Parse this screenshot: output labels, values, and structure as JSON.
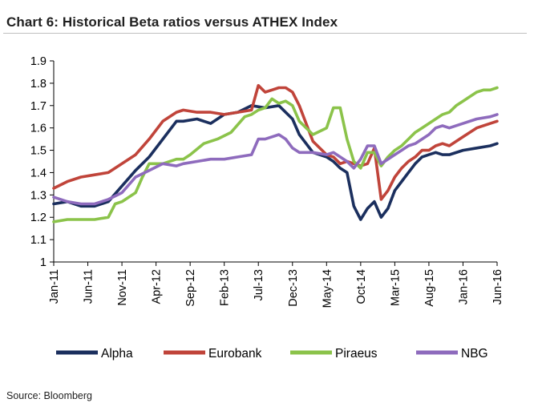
{
  "title": "Chart 6: Historical Beta ratios versus ATHEX Index",
  "source": "Source: Bloomberg",
  "chart_data": {
    "type": "line",
    "title": "Chart 6: Historical Beta ratios versus ATHEX Index",
    "xlabel": "",
    "ylabel": "",
    "ylim": [
      1,
      1.9
    ],
    "yticks": [
      "1",
      "1.1",
      "1.2",
      "1.3",
      "1.4",
      "1.5",
      "1.6",
      "1.7",
      "1.8",
      "1.9"
    ],
    "x_tick_labels": [
      "Jan-11",
      "Jun-11",
      "Nov-11",
      "Apr-12",
      "Sep-12",
      "Feb-13",
      "Jul-13",
      "Dec-13",
      "May-14",
      "Oct-14",
      "Mar-15",
      "Aug-15",
      "Jan-16",
      "Jun-16"
    ],
    "x_range_months": [
      0,
      65
    ],
    "grid": false,
    "legend": "bottom",
    "series": [
      {
        "name": "Alpha",
        "color": "#1b2f5e",
        "x": [
          0,
          2,
          4,
          6,
          8,
          10,
          12,
          14,
          16,
          18,
          19,
          21,
          23,
          25,
          27,
          29,
          31,
          33,
          35,
          36,
          38,
          40,
          41,
          42,
          43,
          44,
          45,
          46,
          47,
          48,
          49,
          50,
          51,
          52,
          53,
          54,
          55,
          56,
          57,
          58,
          60,
          62,
          64,
          65
        ],
        "y": [
          1.26,
          1.27,
          1.25,
          1.25,
          1.27,
          1.34,
          1.41,
          1.47,
          1.55,
          1.63,
          1.63,
          1.64,
          1.62,
          1.66,
          1.67,
          1.7,
          1.69,
          1.7,
          1.64,
          1.57,
          1.49,
          1.47,
          1.45,
          1.42,
          1.4,
          1.25,
          1.19,
          1.24,
          1.27,
          1.2,
          1.24,
          1.32,
          1.36,
          1.4,
          1.44,
          1.47,
          1.48,
          1.49,
          1.48,
          1.48,
          1.5,
          1.51,
          1.52,
          1.53
        ]
      },
      {
        "name": "Eurobank",
        "color": "#c0443a",
        "x": [
          0,
          2,
          4,
          6,
          8,
          10,
          12,
          14,
          16,
          18,
          19,
          21,
          23,
          25,
          27,
          29,
          30,
          31,
          32,
          33,
          34,
          35,
          36,
          38,
          40,
          41,
          42,
          43,
          44,
          45,
          46,
          47,
          48,
          49,
          50,
          51,
          52,
          53,
          54,
          55,
          56,
          57,
          58,
          60,
          62,
          64,
          65
        ],
        "y": [
          1.33,
          1.36,
          1.38,
          1.39,
          1.4,
          1.44,
          1.48,
          1.55,
          1.63,
          1.67,
          1.68,
          1.67,
          1.67,
          1.66,
          1.67,
          1.68,
          1.79,
          1.76,
          1.77,
          1.78,
          1.78,
          1.76,
          1.7,
          1.54,
          1.48,
          1.47,
          1.44,
          1.45,
          1.44,
          1.43,
          1.44,
          1.51,
          1.28,
          1.32,
          1.38,
          1.42,
          1.45,
          1.47,
          1.5,
          1.5,
          1.52,
          1.53,
          1.52,
          1.56,
          1.6,
          1.62,
          1.63
        ]
      },
      {
        "name": "Piraeus",
        "color": "#8bc34a",
        "x": [
          0,
          2,
          4,
          6,
          8,
          9,
          10,
          12,
          13,
          14,
          16,
          18,
          19,
          20,
          22,
          24,
          26,
          28,
          29,
          30,
          31,
          32,
          33,
          34,
          35,
          36,
          38,
          40,
          41,
          42,
          43,
          44,
          45,
          46,
          47,
          48,
          49,
          50,
          51,
          52,
          53,
          54,
          55,
          56,
          57,
          58,
          59,
          60,
          61,
          62,
          63,
          64,
          65
        ],
        "y": [
          1.18,
          1.19,
          1.19,
          1.19,
          1.2,
          1.26,
          1.27,
          1.31,
          1.38,
          1.44,
          1.44,
          1.46,
          1.46,
          1.48,
          1.53,
          1.55,
          1.58,
          1.65,
          1.66,
          1.68,
          1.69,
          1.73,
          1.71,
          1.72,
          1.7,
          1.63,
          1.57,
          1.6,
          1.69,
          1.69,
          1.55,
          1.45,
          1.42,
          1.49,
          1.49,
          1.43,
          1.47,
          1.5,
          1.52,
          1.55,
          1.58,
          1.6,
          1.62,
          1.64,
          1.66,
          1.67,
          1.7,
          1.72,
          1.74,
          1.76,
          1.77,
          1.77,
          1.78
        ]
      },
      {
        "name": "NBG",
        "color": "#8e6bbd",
        "x": [
          0,
          2,
          4,
          6,
          8,
          10,
          12,
          14,
          16,
          18,
          19,
          21,
          23,
          25,
          27,
          29,
          30,
          31,
          32,
          33,
          34,
          35,
          36,
          38,
          40,
          41,
          42,
          43,
          44,
          45,
          46,
          47,
          48,
          49,
          50,
          51,
          52,
          53,
          54,
          55,
          56,
          57,
          58,
          60,
          62,
          64,
          65
        ],
        "y": [
          1.29,
          1.27,
          1.26,
          1.26,
          1.28,
          1.31,
          1.38,
          1.41,
          1.44,
          1.43,
          1.44,
          1.45,
          1.46,
          1.46,
          1.47,
          1.48,
          1.55,
          1.55,
          1.56,
          1.57,
          1.55,
          1.51,
          1.49,
          1.49,
          1.48,
          1.49,
          1.47,
          1.45,
          1.42,
          1.46,
          1.52,
          1.52,
          1.44,
          1.46,
          1.48,
          1.5,
          1.52,
          1.53,
          1.55,
          1.57,
          1.6,
          1.61,
          1.6,
          1.62,
          1.64,
          1.65,
          1.66
        ]
      }
    ]
  }
}
